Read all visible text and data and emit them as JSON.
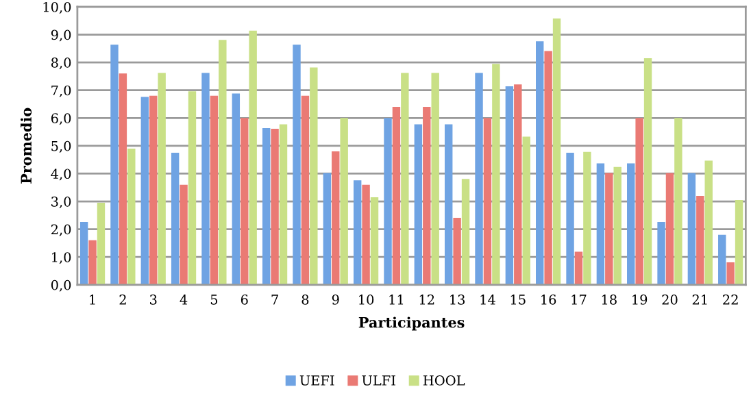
{
  "chart_data": {
    "type": "bar",
    "xlabel": "Participantes",
    "ylabel": "Promedio",
    "categories": [
      "1",
      "2",
      "3",
      "4",
      "5",
      "6",
      "7",
      "8",
      "9",
      "10",
      "11",
      "12",
      "13",
      "14",
      "15",
      "16",
      "17",
      "18",
      "19",
      "20",
      "21",
      "22"
    ],
    "series": [
      {
        "name": "UEFI",
        "color": "#6fa3e3",
        "values": [
          2.26,
          8.64,
          6.76,
          4.75,
          7.62,
          6.88,
          5.64,
          8.64,
          4.02,
          3.76,
          6.0,
          5.77,
          5.77,
          7.62,
          7.14,
          8.76,
          4.75,
          4.37,
          4.37,
          2.26,
          4.02,
          1.8
        ]
      },
      {
        "name": "ULFI",
        "color": "#ea7a74",
        "values": [
          1.6,
          7.6,
          6.8,
          3.6,
          6.8,
          6.0,
          5.61,
          6.8,
          4.8,
          3.6,
          6.4,
          6.4,
          2.41,
          6.0,
          7.21,
          8.41,
          1.19,
          4.02,
          6.0,
          4.02,
          3.2,
          0.81
        ]
      },
      {
        "name": "HOOL",
        "color": "#c9e086",
        "values": [
          2.95,
          4.9,
          7.62,
          6.96,
          8.81,
          9.14,
          5.77,
          7.82,
          6.0,
          3.15,
          7.62,
          7.62,
          3.81,
          7.95,
          5.33,
          9.58,
          4.78,
          4.24,
          8.15,
          6.0,
          4.47,
          3.05
        ]
      }
    ],
    "ylim": [
      0,
      10
    ],
    "yticks": [
      {
        "value": 0,
        "label": "0,0"
      },
      {
        "value": 1,
        "label": "1,0"
      },
      {
        "value": 2,
        "label": "2,0"
      },
      {
        "value": 3,
        "label": "3,0"
      },
      {
        "value": 4,
        "label": "4,0"
      },
      {
        "value": 5,
        "label": "5,0"
      },
      {
        "value": 6,
        "label": "6,0"
      },
      {
        "value": 7,
        "label": "7,0"
      },
      {
        "value": 8,
        "label": "8,0"
      },
      {
        "value": 9,
        "label": "9,0"
      },
      {
        "value": 10,
        "label": "10,0"
      }
    ],
    "grid": "y",
    "legend": "bottom"
  }
}
